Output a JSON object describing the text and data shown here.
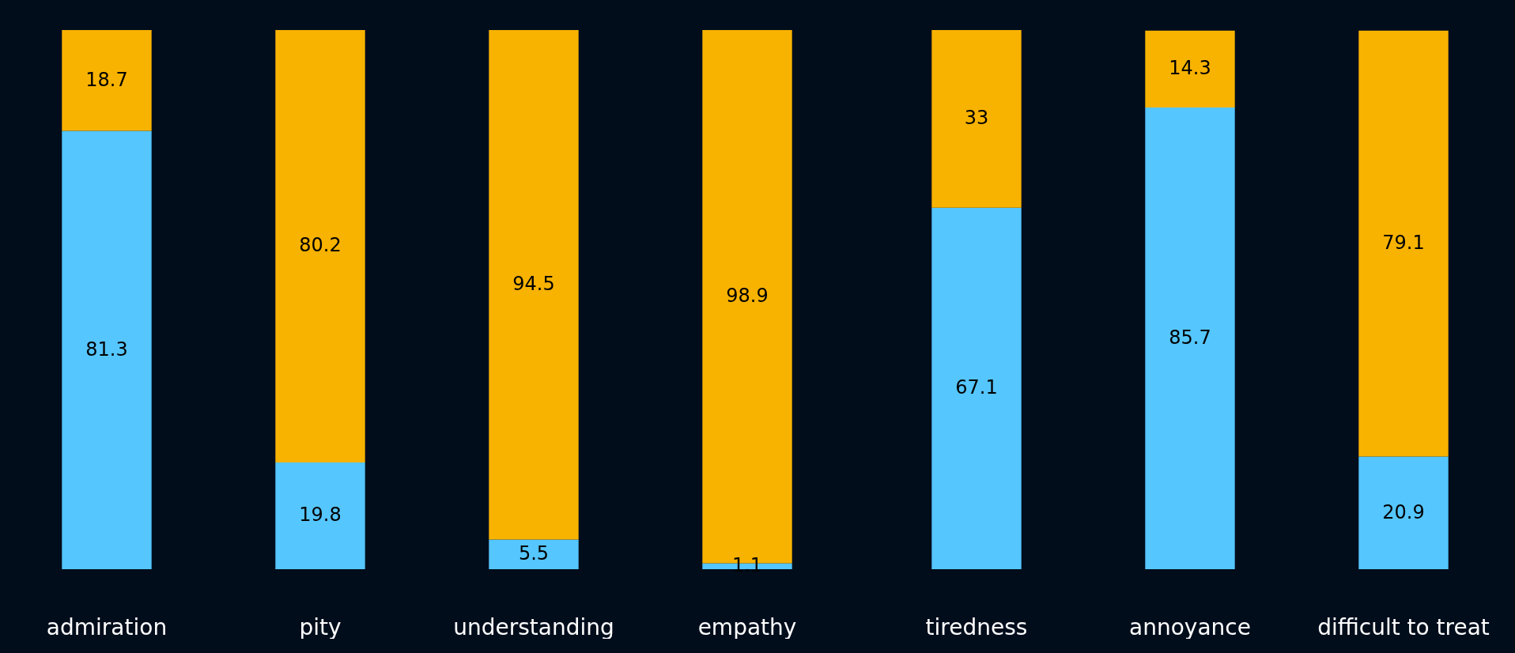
{
  "chart_data": [
    {
      "type": "bar",
      "stacked": true,
      "data_labels": true,
      "tick_labels": "x",
      "grid": false,
      "legend": false,
      "categories": [
        "admiration",
        "pity",
        "understanding",
        "empathy"
      ],
      "series": [
        {
          "color": "#55c6fe",
          "values": [
            81.3,
            19.8,
            5.5,
            1.1
          ]
        },
        {
          "color": "#f8b200",
          "values": [
            18.7,
            80.2,
            94.5,
            98.9
          ]
        }
      ]
    },
    {
      "type": "bar",
      "stacked": true,
      "data_labels": true,
      "tick_labels": "x",
      "grid": false,
      "legend": false,
      "categories": [
        "tiredness",
        "annoyance",
        "difficult to treat"
      ],
      "series": [
        {
          "color": "#55c6fe",
          "values": [
            67.1,
            85.7,
            20.9
          ]
        },
        {
          "color": "#f8b200",
          "values": [
            33,
            14.3,
            79.1
          ]
        }
      ]
    }
  ]
}
